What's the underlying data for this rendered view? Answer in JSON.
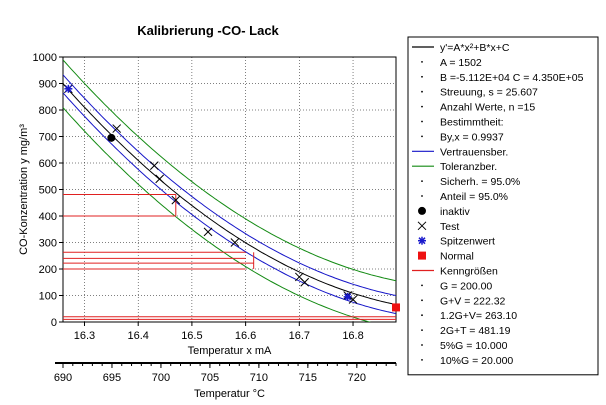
{
  "chart_data": {
    "type": "scatter",
    "title": "Kalibrierung -CO- Lack",
    "xlabel": "Temperatur x mA",
    "ylabel": "CO-Konzentration y mg/m³",
    "x2label": "Temperatur °C",
    "xlim": [
      16.26,
      16.88
    ],
    "ylim": [
      0,
      1000
    ],
    "x2lim": [
      690,
      724
    ],
    "xticks": [
      "16.3",
      "16.4",
      "16.5",
      "16.6",
      "16.7",
      "16.8"
    ],
    "yticks": [
      "0",
      "100",
      "200",
      "300",
      "400",
      "500",
      "600",
      "700",
      "800",
      "900",
      "1000"
    ],
    "x2ticks": [
      "690",
      "695",
      "700",
      "705",
      "710",
      "715",
      "720"
    ],
    "grid": true,
    "colors": {
      "fit": "#000000",
      "confidence": "#1515c8",
      "tolerance": "#138a13",
      "kenngroessen": "#e02020",
      "normal": "#ee1111",
      "spitzenwert": "#1a1acc"
    },
    "model": {
      "A": 1502,
      "B": -51120,
      "C": 435000,
      "s": 25.607,
      "conf_offset": 34,
      "tol_offset": 90
    },
    "series": [
      {
        "name": "Test",
        "marker": "x",
        "points": [
          [
            16.27,
            880
          ],
          [
            16.36,
            730
          ],
          [
            16.43,
            590
          ],
          [
            16.44,
            540
          ],
          [
            16.47,
            460
          ],
          [
            16.53,
            340
          ],
          [
            16.58,
            300
          ],
          [
            16.7,
            170
          ],
          [
            16.71,
            150
          ],
          [
            16.79,
            100
          ],
          [
            16.8,
            85
          ]
        ]
      },
      {
        "name": "inaktiv",
        "marker": "dot",
        "points": [
          [
            16.35,
            695
          ]
        ]
      },
      {
        "name": "Spitzenwert",
        "marker": "star",
        "points": [
          [
            16.27,
            880
          ],
          [
            16.79,
            95
          ]
        ]
      },
      {
        "name": "Normal",
        "marker": "square",
        "points": [
          [
            16.88,
            55
          ]
        ]
      }
    ],
    "kenngroessen_lines": [
      {
        "label": "G",
        "y": 200.0,
        "x": 16.6
      },
      {
        "label": "G+V",
        "y": 222.32,
        "x": 16.615
      },
      {
        "label": "1.2G+V",
        "y": 263.1,
        "x": 16.6
      },
      {
        "label": "2G+T",
        "y": 481.19,
        "x": 16.47
      },
      {
        "label": "5%G",
        "y": 10.0,
        "x": 16.88
      },
      {
        "label": "10%G",
        "y": 20.0,
        "x": 16.88
      }
    ],
    "legend": {
      "placement": "right",
      "rows": [
        {
          "sym": "line",
          "color": "#000000",
          "text": "y'=A*x²+B*x+C"
        },
        {
          "sym": "dot-small",
          "text": "A = 1502"
        },
        {
          "sym": "dot-small",
          "text": "B =-5.112E+04 C = 4.350E+05"
        },
        {
          "sym": "dot-small",
          "text": "Streuung, s = 25.607"
        },
        {
          "sym": "dot-small",
          "text": "Anzahl Werte, n =15"
        },
        {
          "sym": "dot-small",
          "text": "Bestimmtheit:"
        },
        {
          "sym": "dot-small",
          "text": "By,x = 0.9937"
        },
        {
          "sym": "line",
          "color": "#1515c8",
          "text": "Vertrauensber."
        },
        {
          "sym": "line",
          "color": "#138a13",
          "text": "Toleranzber."
        },
        {
          "sym": "dot-small",
          "text": "Sicherh. = 95.0%"
        },
        {
          "sym": "dot-small",
          "text": "Anteil = 95.0%"
        },
        {
          "sym": "dot",
          "text": "inaktiv"
        },
        {
          "sym": "x",
          "text": "Test"
        },
        {
          "sym": "star",
          "color": "#1a1acc",
          "text": "Spitzenwert"
        },
        {
          "sym": "square",
          "color": "#ee1111",
          "text": "Normal"
        },
        {
          "sym": "line",
          "color": "#e02020",
          "text": "Kenngrößen"
        },
        {
          "sym": "dot-small",
          "text": "G     = 200.00"
        },
        {
          "sym": "dot-small",
          "text": "G+V   = 222.32"
        },
        {
          "sym": "dot-small",
          "text": "1.2G+V= 263.10"
        },
        {
          "sym": "dot-small",
          "text": "2G+T  = 481.19"
        },
        {
          "sym": "dot-small",
          "text": "5%G   = 10.000"
        },
        {
          "sym": "dot-small",
          "text": "10%G  = 20.000"
        }
      ]
    }
  }
}
